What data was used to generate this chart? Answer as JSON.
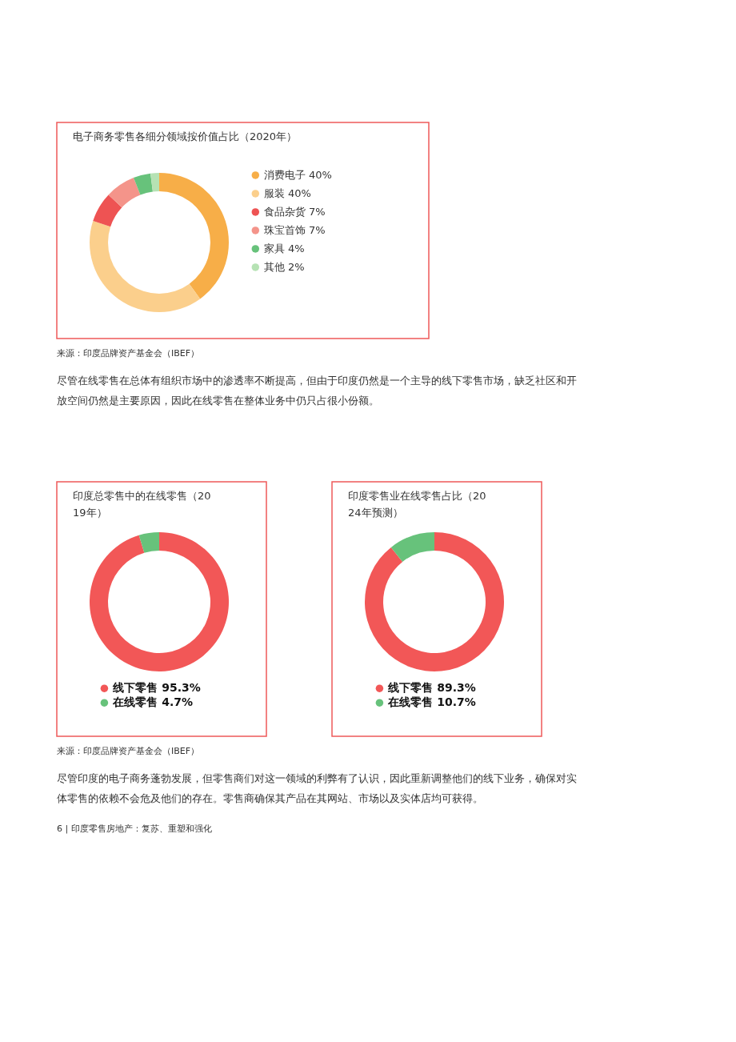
{
  "chart_data": [
    {
      "type": "donut",
      "title": "电子商务零售各细分领域按价值占比（2020年）",
      "categories": [
        "消费电子",
        "服装",
        "食品杂货",
        "珠宝首饰",
        "家具",
        "其他"
      ],
      "values": [
        40,
        40,
        7,
        7,
        4,
        2
      ],
      "value_labels": [
        "40%",
        "40%",
        "7%",
        "7%",
        "4%",
        "2%"
      ],
      "colors": [
        "#f7ae48",
        "#fbcf8c",
        "#ee5353",
        "#f4948a",
        "#67c27b",
        "#b6e2b4"
      ],
      "legend": "right",
      "annotations": [
        "来源：印度品牌资产基金会（IBEF）",
        "尽管在线零售在总体有组织市场中的渗透率不断提高，但由于印度仍然是一个主导的线下零售市场，缺乏社区和开放空间仍然是主要原因，因此在线零售在整体业务中仍只占很小份额。"
      ]
    },
    {
      "type": "donut",
      "title": "印度总零售中的在线零售（2019年）",
      "categories": [
        "线下零售",
        "在线零售"
      ],
      "values": [
        95.3,
        4.7
      ],
      "value_labels": [
        "95.3%",
        "4.7%"
      ],
      "colors": [
        "#f25757",
        "#67c27b"
      ],
      "legend": "bottom",
      "annotations": [
        "来源：印度品牌资产基金会（IBEF）",
        "尽管印度的电子商务蓬勃发展，但零售商们对这一领域的利弊有了认识，因此重新调整他们的线下业务，确保对实体零售的依赖不会危及他们的存在。零售商确保其产品在其网站、市场以及实体店均可获得。",
        "6 | 印度零售房地产：复苏、重塑和强化"
      ]
    },
    {
      "type": "donut",
      "title": "印度零售业在线零售占比（2024年预测）",
      "categories": [
        "线下零售",
        "在线零售"
      ],
      "values": [
        89.3,
        10.7
      ],
      "value_labels": [
        "89.3%",
        "10.7%"
      ],
      "colors": [
        "#f25757",
        "#67c27b"
      ],
      "legend": "bottom"
    }
  ]
}
